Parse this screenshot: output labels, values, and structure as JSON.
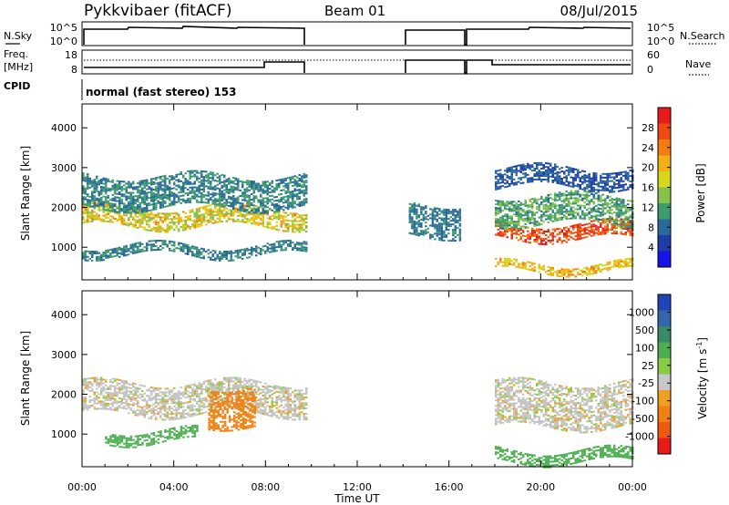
{
  "header": {
    "station": "Pykkvibaer (fitACF)",
    "beam": "Beam 01",
    "date": "08/Jul/2015"
  },
  "noise_panel": {
    "left_label": "N.Sky",
    "left_ticks": [
      "10^5",
      "10^0"
    ],
    "right_label": "N.Search",
    "right_ticks": [
      "10^5",
      "10^0"
    ]
  },
  "freq_panel": {
    "left_label_1": "Freq.",
    "left_label_2": "[MHz]",
    "left_ticks": [
      "18",
      "8"
    ],
    "right_label": "Nave",
    "right_ticks": [
      "60",
      "0"
    ]
  },
  "cpid_panel": {
    "label": "CPID",
    "mode_text": "normal (fast stereo) 153"
  },
  "chart_data": [
    {
      "type": "heatmap",
      "name": "power",
      "ylabel": "Slant Range [km]",
      "yticks": [
        "4000",
        "3000",
        "2000",
        "1000"
      ],
      "xticks": [
        "00:00",
        "04:00",
        "08:00",
        "12:00",
        "16:00",
        "20:00",
        "00:00"
      ],
      "xlim": [
        0,
        24
      ],
      "ylim": [
        180,
        4600
      ],
      "colorbar": {
        "label": "Power [dB]",
        "ticks": [
          "28",
          "24",
          "20",
          "16",
          "12",
          "8",
          "4"
        ],
        "colors": [
          "#e81a1a",
          "#f04a10",
          "#f47d10",
          "#f2b214",
          "#d6d61a",
          "#84c24a",
          "#3c9c6e",
          "#2a6a9a",
          "#1e3ea6",
          "#1414e6"
        ]
      },
      "data_gap_hours": [
        9.75,
        14.25
      ],
      "layers_approx": [
        {
          "t_start": 0.0,
          "t_end": 9.75,
          "range_km": [
            1500,
            2000
          ],
          "power_db": [
            12,
            22
          ]
        },
        {
          "t_start": 0.0,
          "t_end": 9.75,
          "range_km": [
            2000,
            2800
          ],
          "power_db": [
            6,
            12
          ]
        },
        {
          "t_start": 0.0,
          "t_end": 9.75,
          "range_km": [
            800,
            1050
          ],
          "power_db": [
            6,
            12
          ]
        },
        {
          "t_start": 14.25,
          "t_end": 16.5,
          "range_km": [
            1300,
            2100
          ],
          "power_db": [
            6,
            10
          ]
        },
        {
          "t_start": 18.0,
          "t_end": 24.0,
          "range_km": [
            1200,
            1600
          ],
          "power_db": [
            22,
            30
          ]
        },
        {
          "t_start": 18.0,
          "t_end": 24.0,
          "range_km": [
            1600,
            2300
          ],
          "power_db": [
            8,
            14
          ]
        },
        {
          "t_start": 18.0,
          "t_end": 24.0,
          "range_km": [
            2500,
            3000
          ],
          "power_db": [
            4,
            8
          ]
        },
        {
          "t_start": 18.0,
          "t_end": 24.0,
          "range_km": [
            400,
            600
          ],
          "power_db": [
            16,
            22
          ]
        }
      ]
    },
    {
      "type": "heatmap",
      "name": "velocity",
      "ylabel": "Slant Range [km]",
      "xlabel": "Time UT",
      "yticks": [
        "4000",
        "3000",
        "2000",
        "1000"
      ],
      "xticks": [
        "00:00",
        "04:00",
        "08:00",
        "12:00",
        "16:00",
        "20:00",
        "00:00"
      ],
      "xlim": [
        0,
        24
      ],
      "ylim": [
        180,
        4600
      ],
      "colorbar": {
        "label": "Velocity [m s",
        "label_superscript": "-1",
        "label_end": "]",
        "ticks": [
          "1000",
          "500",
          "100",
          "25",
          "-25",
          "-100",
          "-500",
          "-1000"
        ],
        "colors": [
          "#2244bb",
          "#3366aa",
          "#3a8a6a",
          "#4caf50",
          "#88cc44",
          "#c8c8c8",
          "#f0a020",
          "#f08010",
          "#f05a10",
          "#e81a1a"
        ]
      },
      "ground_scatter_color": "#c4c4c4",
      "data_gap_hours": [
        9.75,
        14.25
      ],
      "layers_approx": [
        {
          "t_start": 0.0,
          "t_end": 9.75,
          "range_km": [
            1500,
            2300
          ],
          "velocity_ms": 0
        },
        {
          "t_start": 1.0,
          "t_end": 5.0,
          "range_km": [
            800,
            1100
          ],
          "velocity_ms": 150
        },
        {
          "t_start": 5.5,
          "t_end": 7.5,
          "range_km": [
            1200,
            2200
          ],
          "velocity_ms": -300
        },
        {
          "t_start": 18.0,
          "t_end": 24.0,
          "range_km": [
            1200,
            2300
          ],
          "velocity_ms": 0
        },
        {
          "t_start": 18.0,
          "t_end": 24.0,
          "range_km": [
            300,
            600
          ],
          "velocity_ms": 200
        }
      ]
    }
  ]
}
